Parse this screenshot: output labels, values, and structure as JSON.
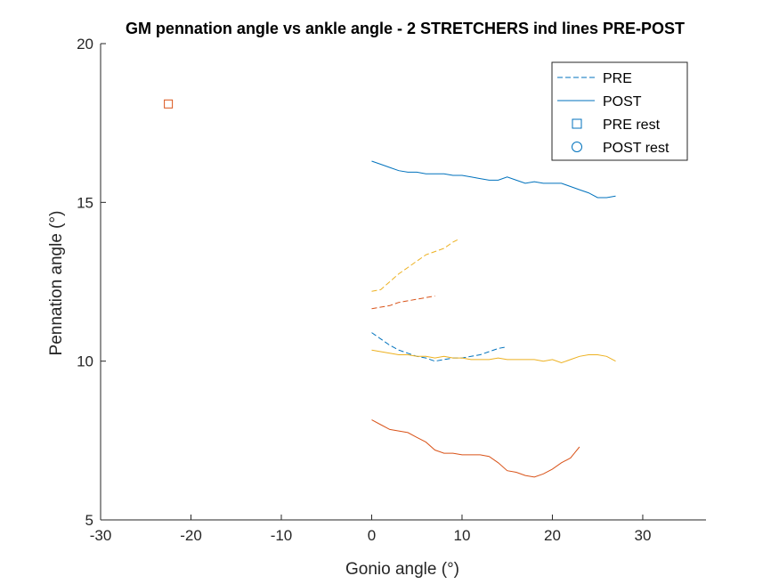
{
  "chart_data": {
    "type": "line",
    "title": "GM pennation angle vs ankle angle - 2 STRETCHERS ind lines PRE-POST",
    "xlabel": "Gonio angle (°)",
    "ylabel": "Pennation angle (°)",
    "xlim": [
      -30,
      37
    ],
    "ylim": [
      5,
      20
    ],
    "xticks": [
      -30,
      -20,
      -10,
      0,
      10,
      20,
      30
    ],
    "xtick_labels": [
      "-30",
      "-20",
      "-10",
      "0",
      "10",
      "20",
      "30"
    ],
    "yticks": [
      5,
      10,
      15,
      20
    ],
    "ytick_labels": [
      "5",
      "10",
      "15",
      "20"
    ],
    "grid": false,
    "legend_position": "top-right",
    "legend": [
      {
        "label": "PRE",
        "marker": "dashed-line",
        "color": "#0072BD"
      },
      {
        "label": "POST",
        "marker": "solid-line",
        "color": "#0072BD"
      },
      {
        "label": "PRE rest",
        "marker": "square",
        "color": "#0072BD"
      },
      {
        "label": "POST rest",
        "marker": "circle",
        "color": "#0072BD"
      }
    ],
    "series": [
      {
        "style": "dashed",
        "color": "#0072BD",
        "x": [
          0,
          1,
          2,
          3,
          4,
          5,
          6,
          7,
          8,
          9,
          10,
          11,
          12,
          13,
          14,
          15
        ],
        "y": [
          10.9,
          10.7,
          10.5,
          10.35,
          10.25,
          10.15,
          10.1,
          10.0,
          10.05,
          10.1,
          10.1,
          10.15,
          10.2,
          10.3,
          10.4,
          10.45
        ]
      },
      {
        "style": "dashed",
        "color": "#D95319",
        "x": [
          0,
          1,
          2,
          3,
          4,
          5,
          6,
          7
        ],
        "y": [
          11.65,
          11.7,
          11.75,
          11.85,
          11.9,
          11.95,
          12.0,
          12.05
        ]
      },
      {
        "style": "dashed",
        "color": "#EDB120",
        "x": [
          0,
          1,
          2,
          3,
          4,
          5,
          6,
          7,
          8,
          9,
          9.7
        ],
        "y": [
          12.2,
          12.25,
          12.5,
          12.75,
          12.95,
          13.15,
          13.35,
          13.45,
          13.55,
          13.75,
          13.85
        ]
      },
      {
        "style": "solid",
        "color": "#0072BD",
        "x": [
          0,
          1,
          2,
          3,
          4,
          5,
          6,
          7,
          8,
          9,
          10,
          11,
          12,
          13,
          14,
          15,
          16,
          17,
          18,
          19,
          20,
          21,
          22,
          23,
          24,
          25,
          26,
          27
        ],
        "y": [
          16.3,
          16.2,
          16.1,
          16.0,
          15.95,
          15.95,
          15.9,
          15.9,
          15.9,
          15.85,
          15.85,
          15.8,
          15.75,
          15.7,
          15.7,
          15.8,
          15.7,
          15.6,
          15.65,
          15.6,
          15.6,
          15.6,
          15.5,
          15.4,
          15.3,
          15.15,
          15.15,
          15.2
        ]
      },
      {
        "style": "solid",
        "color": "#D95319",
        "x": [
          0,
          1,
          2,
          3,
          4,
          5,
          6,
          7,
          8,
          9,
          10,
          11,
          12,
          13,
          14,
          15,
          16,
          17,
          18,
          19,
          20,
          21,
          22,
          23
        ],
        "y": [
          8.15,
          8.0,
          7.85,
          7.8,
          7.75,
          7.6,
          7.45,
          7.2,
          7.1,
          7.1,
          7.05,
          7.05,
          7.05,
          7.0,
          6.8,
          6.55,
          6.5,
          6.4,
          6.35,
          6.45,
          6.6,
          6.8,
          6.95,
          7.3
        ]
      },
      {
        "style": "solid",
        "color": "#EDB120",
        "x": [
          0,
          1,
          2,
          3,
          4,
          5,
          6,
          7,
          8,
          9,
          10,
          11,
          12,
          13,
          14,
          15,
          16,
          17,
          18,
          19,
          20,
          21,
          22,
          23,
          24,
          25,
          26,
          27
        ],
        "y": [
          10.35,
          10.3,
          10.25,
          10.2,
          10.2,
          10.15,
          10.15,
          10.1,
          10.15,
          10.1,
          10.1,
          10.05,
          10.05,
          10.05,
          10.1,
          10.05,
          10.05,
          10.05,
          10.05,
          10.0,
          10.05,
          9.95,
          10.05,
          10.15,
          10.2,
          10.2,
          10.15,
          10.0
        ]
      }
    ],
    "markers": [
      {
        "type": "square",
        "color": "#D95319",
        "x": -22.5,
        "y": 18.1
      }
    ]
  }
}
